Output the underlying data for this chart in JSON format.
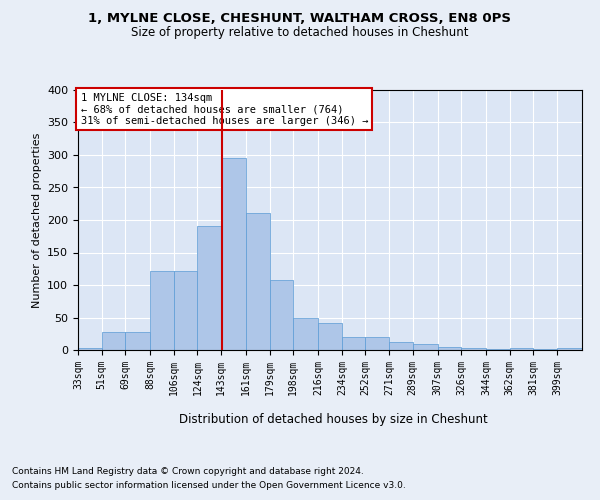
{
  "title1": "1, MYLNE CLOSE, CHESHUNT, WALTHAM CROSS, EN8 0PS",
  "title2": "Size of property relative to detached houses in Cheshunt",
  "xlabel": "Distribution of detached houses by size in Cheshunt",
  "ylabel": "Number of detached properties",
  "footer1": "Contains HM Land Registry data © Crown copyright and database right 2024.",
  "footer2": "Contains public sector information licensed under the Open Government Licence v3.0.",
  "annotation_line1": "1 MYLNE CLOSE: 134sqm",
  "annotation_line2": "← 68% of detached houses are smaller (764)",
  "annotation_line3": "31% of semi-detached houses are larger (346) →",
  "marker_value": 134,
  "categories": [
    "33sqm",
    "51sqm",
    "69sqm",
    "88sqm",
    "106sqm",
    "124sqm",
    "143sqm",
    "161sqm",
    "179sqm",
    "198sqm",
    "216sqm",
    "234sqm",
    "252sqm",
    "271sqm",
    "289sqm",
    "307sqm",
    "326sqm",
    "344sqm",
    "362sqm",
    "381sqm",
    "399sqm"
  ],
  "bin_edges": [
    24,
    42,
    60,
    79,
    97,
    115,
    133,
    152,
    170,
    188,
    207,
    225,
    243,
    261,
    279,
    298,
    316,
    335,
    353,
    371,
    389,
    408
  ],
  "values": [
    3,
    28,
    28,
    122,
    122,
    190,
    295,
    210,
    108,
    50,
    42,
    20,
    20,
    13,
    10,
    5,
    3,
    1,
    3,
    1,
    3
  ],
  "bar_color": "#aec6e8",
  "bar_edge_color": "#5a9bd5",
  "line_color": "#cc0000",
  "bg_color": "#e8eef7",
  "plot_bg_color": "#dce6f5",
  "annotation_box_color": "#ffffff",
  "annotation_border_color": "#cc0000",
  "ylim": [
    0,
    400
  ],
  "yticks": [
    0,
    50,
    100,
    150,
    200,
    250,
    300,
    350,
    400
  ]
}
